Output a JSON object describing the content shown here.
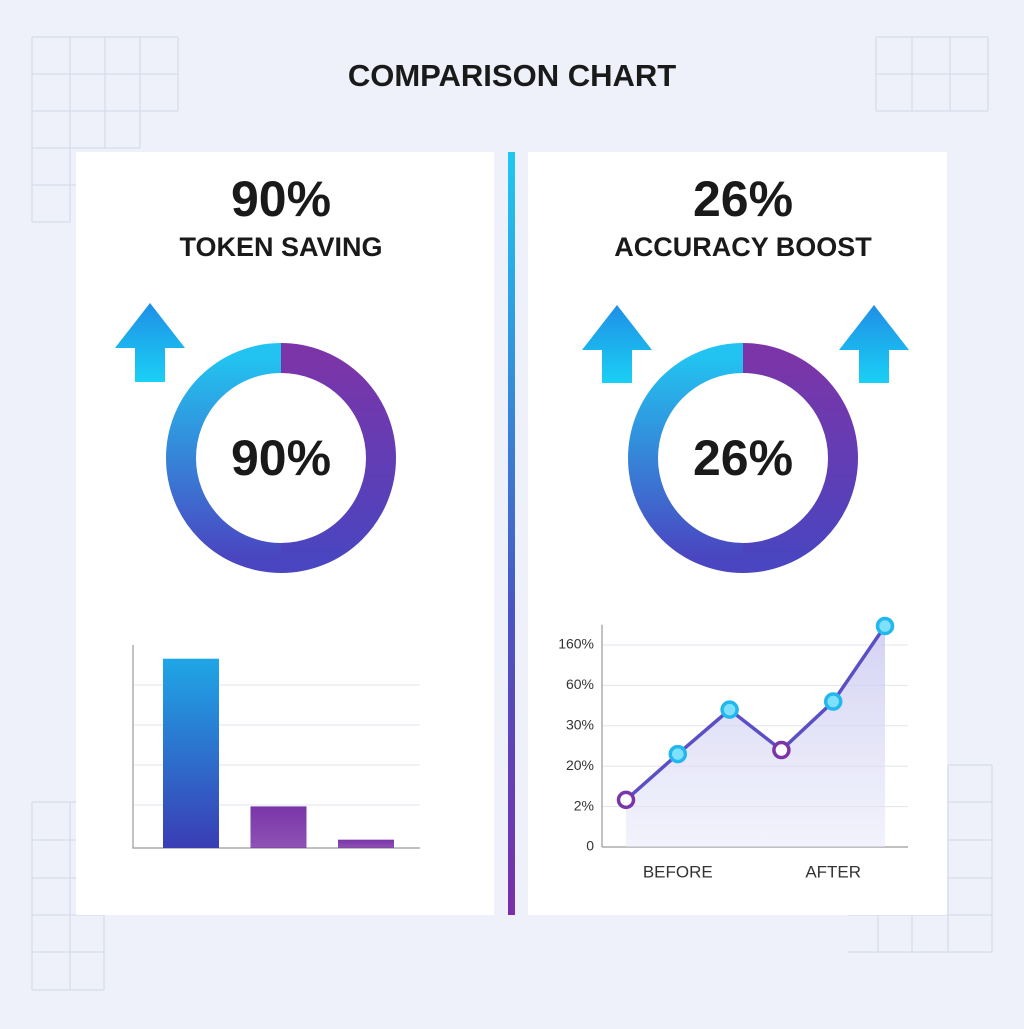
{
  "title": "COMPARISON CHART",
  "panels": [
    {
      "headline": "90%",
      "subtitle": "TOKEN SAVING",
      "donut_label": "90%"
    },
    {
      "headline": "26%",
      "subtitle": "ACCURACY BOOST",
      "donut_label": "26%"
    }
  ],
  "chart_data": [
    {
      "type": "bar",
      "values": [
        91,
        20,
        4
      ],
      "colors": [
        "#1fa6e6",
        "#7a35a8",
        "#7a35a8"
      ],
      "ylim": [
        0,
        100
      ]
    },
    {
      "type": "line",
      "categories": [
        null,
        "BEFORE",
        null,
        null,
        "AFTER",
        null
      ],
      "series": [
        {
          "color": "#5a4fc4",
          "values": [
            5,
            23,
            42,
            24,
            48,
            207
          ]
        }
      ],
      "point_colors": [
        "#7a35a8",
        "#22b8ee",
        "#22b8ee",
        "#7a35a8",
        "#22b8ee",
        "#22b8ee"
      ],
      "ylim": [
        0,
        210
      ],
      "yticks": [
        0,
        {
          "value": 2,
          "label": "2%"
        },
        {
          "value": 20,
          "label": "20%"
        },
        {
          "value": 30,
          "label": "30%"
        },
        {
          "value": 60,
          "label": "60%"
        },
        {
          "value": 160,
          "label": "160%"
        }
      ],
      "grid": true
    }
  ]
}
